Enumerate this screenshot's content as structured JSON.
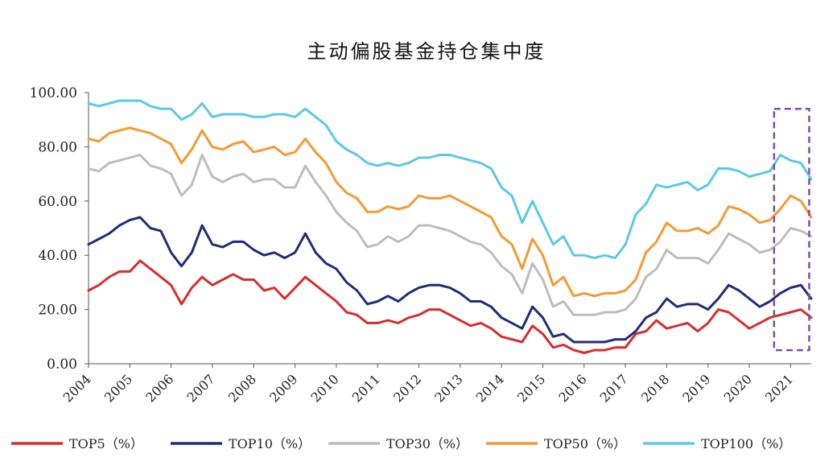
{
  "chart_data": {
    "type": "line",
    "title": "主动偏股基金持仓集中度",
    "xlabel": "",
    "ylabel": "",
    "ylim": [
      0,
      100
    ],
    "xlim": [
      2004.0,
      2021.5
    ],
    "y_ticks": [
      "0.00",
      "20.00",
      "40.00",
      "60.00",
      "80.00",
      "100.00"
    ],
    "x_ticks": [
      "2004",
      "2005",
      "2006",
      "2007",
      "2008",
      "2009",
      "2010",
      "2011",
      "2012",
      "2013",
      "2014",
      "2015",
      "2016",
      "2017",
      "2018",
      "2019",
      "2020",
      "2021"
    ],
    "grid": false,
    "legend_position": "bottom",
    "highlight_box": {
      "x_start": 2020.6,
      "x_end": 2021.45,
      "y_start": 5,
      "y_end": 94,
      "style": "dashed",
      "color": "#7b4fa0"
    },
    "x": [
      2004.0,
      2004.25,
      2004.5,
      2004.75,
      2005.0,
      2005.25,
      2005.5,
      2005.75,
      2006.0,
      2006.25,
      2006.5,
      2006.75,
      2007.0,
      2007.25,
      2007.5,
      2007.75,
      2008.0,
      2008.25,
      2008.5,
      2008.75,
      2009.0,
      2009.25,
      2009.5,
      2009.75,
      2010.0,
      2010.25,
      2010.5,
      2010.75,
      2011.0,
      2011.25,
      2011.5,
      2011.75,
      2012.0,
      2012.25,
      2012.5,
      2012.75,
      2013.0,
      2013.25,
      2013.5,
      2013.75,
      2014.0,
      2014.25,
      2014.5,
      2014.75,
      2015.0,
      2015.25,
      2015.5,
      2015.75,
      2016.0,
      2016.25,
      2016.5,
      2016.75,
      2017.0,
      2017.25,
      2017.5,
      2017.75,
      2018.0,
      2018.25,
      2018.5,
      2018.75,
      2019.0,
      2019.25,
      2019.5,
      2019.75,
      2020.0,
      2020.25,
      2020.5,
      2020.75,
      2021.0,
      2021.25,
      2021.5
    ],
    "series": [
      {
        "name": "TOP5（%）",
        "color": "#d62d2d",
        "values": [
          27,
          29,
          32,
          34,
          34,
          38,
          35,
          32,
          29,
          22,
          28,
          32,
          29,
          31,
          33,
          31,
          31,
          27,
          28,
          24,
          28,
          32,
          29,
          26,
          23,
          19,
          18,
          15,
          15,
          16,
          15,
          17,
          18,
          20,
          20,
          18,
          16,
          14,
          15,
          13,
          10,
          9,
          8,
          14,
          11,
          6,
          7,
          5,
          4,
          5,
          5,
          6,
          6,
          11,
          12,
          16,
          13,
          14,
          15,
          12,
          15,
          20,
          19,
          16,
          13,
          15,
          17,
          18,
          19,
          20,
          17
        ]
      },
      {
        "name": "TOP10（%）",
        "color": "#1f2d78",
        "values": [
          44,
          46,
          48,
          51,
          53,
          54,
          50,
          49,
          41,
          36,
          41,
          51,
          44,
          43,
          45,
          45,
          42,
          40,
          41,
          39,
          41,
          48,
          41,
          37,
          35,
          30,
          27,
          22,
          23,
          25,
          23,
          26,
          28,
          29,
          29,
          28,
          26,
          23,
          23,
          21,
          17,
          15,
          13,
          21,
          17,
          10,
          11,
          8,
          8,
          8,
          8,
          9,
          9,
          12,
          17,
          19,
          24,
          21,
          22,
          22,
          20,
          24,
          29,
          27,
          24,
          21,
          23,
          26,
          28,
          29,
          24
        ]
      },
      {
        "name": "TOP30（%）",
        "color": "#bdbdbd",
        "values": [
          72,
          71,
          74,
          75,
          76,
          77,
          73,
          72,
          70,
          62,
          66,
          77,
          69,
          67,
          69,
          70,
          67,
          68,
          68,
          65,
          65,
          73,
          67,
          62,
          56,
          52,
          49,
          43,
          44,
          47,
          45,
          47,
          51,
          51,
          50,
          49,
          47,
          45,
          44,
          41,
          36,
          33,
          26,
          37,
          31,
          21,
          23,
          18,
          18,
          18,
          19,
          19,
          20,
          24,
          32,
          35,
          42,
          39,
          39,
          39,
          37,
          42,
          48,
          46,
          44,
          41,
          42,
          45,
          50,
          49,
          47
        ]
      },
      {
        "name": "TOP50（%）",
        "color": "#f39a34",
        "values": [
          83,
          82,
          85,
          86,
          87,
          86,
          85,
          83,
          81,
          74,
          79,
          86,
          80,
          79,
          81,
          82,
          78,
          79,
          80,
          77,
          78,
          83,
          78,
          74,
          67,
          63,
          61,
          56,
          56,
          58,
          57,
          58,
          62,
          61,
          61,
          62,
          60,
          58,
          56,
          54,
          47,
          44,
          35,
          46,
          40,
          29,
          32,
          25,
          26,
          25,
          26,
          26,
          27,
          31,
          41,
          45,
          52,
          49,
          49,
          50,
          48,
          51,
          58,
          57,
          55,
          52,
          53,
          57,
          62,
          60,
          54
        ]
      },
      {
        "name": "TOP100（%）",
        "color": "#5bc8e8",
        "values": [
          96,
          95,
          96,
          97,
          97,
          97,
          95,
          94,
          94,
          90,
          92,
          96,
          91,
          92,
          92,
          92,
          91,
          91,
          92,
          92,
          91,
          94,
          91,
          88,
          82,
          79,
          77,
          74,
          73,
          74,
          73,
          74,
          76,
          76,
          77,
          77,
          76,
          75,
          74,
          72,
          65,
          62,
          52,
          60,
          52,
          44,
          47,
          40,
          40,
          39,
          40,
          39,
          44,
          55,
          59,
          66,
          65,
          66,
          67,
          64,
          66,
          72,
          72,
          71,
          69,
          70,
          71,
          77,
          75,
          74,
          68
        ]
      }
    ]
  }
}
